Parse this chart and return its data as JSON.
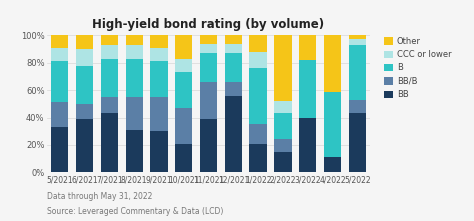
{
  "title": "High-yield bond rating (by volume)",
  "categories": [
    "5/2021",
    "6/2021",
    "7/2021",
    "8/2021",
    "9/2021",
    "10/2021",
    "11/2021",
    "12/2021",
    "1/2022",
    "2/2022",
    "3/2022",
    "4/2022",
    "5/2022"
  ],
  "series": {
    "BB": [
      33,
      39,
      43,
      31,
      30,
      21,
      39,
      56,
      21,
      15,
      40,
      11,
      43
    ],
    "BB/B": [
      18,
      11,
      12,
      24,
      25,
      26,
      27,
      10,
      14,
      9,
      0,
      0,
      10
    ],
    "B": [
      30,
      28,
      28,
      28,
      26,
      26,
      21,
      21,
      41,
      19,
      42,
      48,
      40
    ],
    "CCC or lower": [
      10,
      12,
      10,
      10,
      10,
      10,
      7,
      7,
      12,
      9,
      0,
      0,
      4
    ],
    "Other": [
      9,
      10,
      7,
      7,
      9,
      17,
      6,
      6,
      12,
      48,
      18,
      41,
      3
    ]
  },
  "colors": {
    "BB": "#1b3a5c",
    "BB/B": "#5b7fa6",
    "B": "#2ec4c4",
    "CCC or lower": "#aee4e4",
    "Other": "#f5c518"
  },
  "ylim": [
    0,
    100
  ],
  "yticks": [
    0,
    20,
    40,
    60,
    80,
    100
  ],
  "ytick_labels": [
    "0%",
    "20%",
    "40%",
    "60%",
    "80%",
    "100%"
  ],
  "footnote1": "Data through May 31, 2022",
  "footnote2": "Source: Leveraged Commentary & Data (LCD)",
  "legend_order": [
    "Other",
    "CCC or lower",
    "B",
    "BB/B",
    "BB"
  ],
  "background_color": "#f5f5f5"
}
